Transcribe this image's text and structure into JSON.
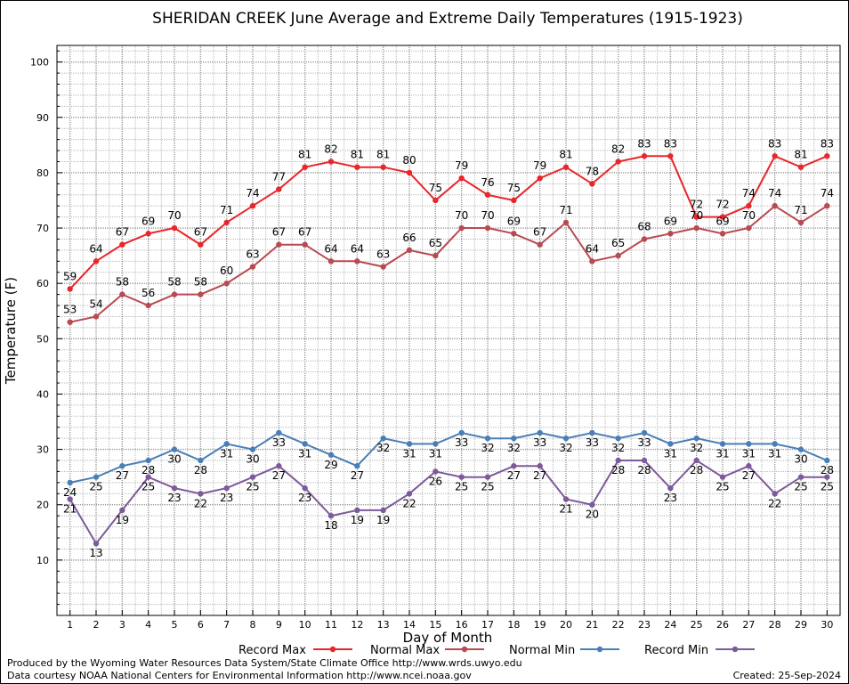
{
  "chart_data": {
    "type": "line",
    "title": "SHERIDAN CREEK June Average and Extreme Daily Temperatures (1915-1923)",
    "xlabel": "Day of Month",
    "ylabel": "Temperature (F)",
    "ylim": [
      0,
      103
    ],
    "xlim": [
      0.5,
      30.5
    ],
    "yticks": [
      10,
      20,
      30,
      40,
      50,
      60,
      70,
      80,
      90,
      100
    ],
    "x": [
      1,
      2,
      3,
      4,
      5,
      6,
      7,
      8,
      9,
      10,
      11,
      12,
      13,
      14,
      15,
      16,
      17,
      18,
      19,
      20,
      21,
      22,
      23,
      24,
      25,
      26,
      27,
      28,
      29,
      30
    ],
    "grid": true,
    "legend_position": "bottom",
    "series": [
      {
        "name": "Record Max",
        "color": "#e8262c",
        "values": [
          59,
          64,
          67,
          69,
          70,
          67,
          71,
          74,
          77,
          81,
          82,
          81,
          81,
          80,
          75,
          79,
          76,
          75,
          79,
          81,
          78,
          82,
          83,
          83,
          72,
          72,
          74,
          83,
          81,
          83
        ]
      },
      {
        "name": "Normal Max",
        "color": "#b84a52",
        "values": [
          53,
          54,
          58,
          56,
          58,
          58,
          60,
          63,
          67,
          67,
          64,
          64,
          63,
          66,
          65,
          70,
          70,
          69,
          67,
          71,
          64,
          65,
          68,
          69,
          70,
          69,
          70,
          74,
          71,
          74
        ]
      },
      {
        "name": "Normal Min",
        "color": "#4a7fb5",
        "values": [
          24,
          25,
          27,
          28,
          30,
          28,
          31,
          30,
          33,
          31,
          29,
          27,
          32,
          31,
          31,
          33,
          32,
          32,
          33,
          32,
          33,
          32,
          33,
          31,
          32,
          31,
          31,
          31,
          30,
          28
        ]
      },
      {
        "name": "Record Min",
        "color": "#7d5a9a",
        "values": [
          21,
          13,
          19,
          25,
          23,
          22,
          23,
          25,
          27,
          23,
          18,
          19,
          19,
          22,
          26,
          25,
          25,
          27,
          27,
          21,
          20,
          28,
          28,
          23,
          28,
          25,
          27,
          22,
          25,
          25
        ]
      }
    ]
  },
  "footer": {
    "line1": "Produced by the Wyoming Water Resources Data System/State Climate Office http://www.wrds.uwyo.edu",
    "line2": "Data courtesy NOAA National Centers for Environmental Information http://www.ncei.noaa.gov",
    "created": "Created:  25-Sep-2024"
  }
}
